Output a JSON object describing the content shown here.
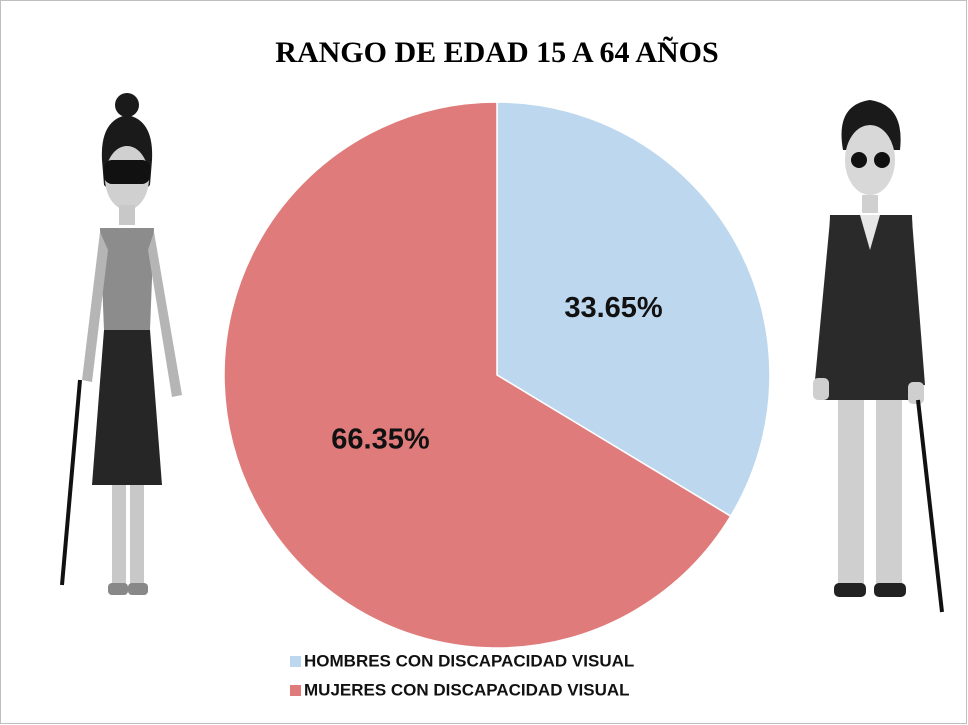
{
  "chart_data": {
    "type": "pie",
    "title": "RANGO DE EDAD 15 A 64 AÑOS",
    "categories": [
      "HOMBRES CON DISCAPACIDAD VISUAL",
      "MUJERES CON DISCAPACIDAD VISUAL"
    ],
    "values": [
      33.65,
      66.35
    ],
    "value_labels": [
      "33.65%",
      "66.35%"
    ],
    "colors": [
      "#bdd7ee",
      "#e07b7b"
    ],
    "legend": "bottom"
  }
}
